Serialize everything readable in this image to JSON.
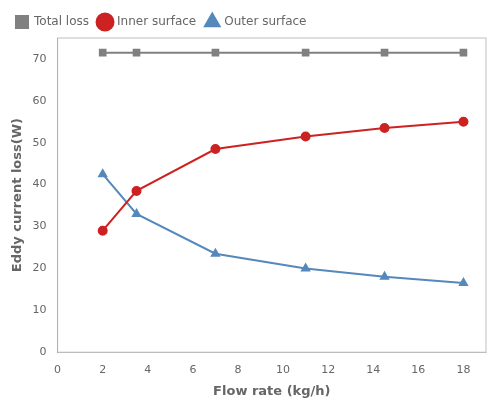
{
  "chart_data": {
    "type": "line",
    "x": [
      2,
      3.5,
      7,
      11,
      14.5,
      18
    ],
    "series": [
      {
        "name": "Total loss",
        "color": "#808080",
        "marker": "square",
        "values": [
          71.5,
          71.5,
          71.5,
          71.5,
          71.5,
          71.5
        ]
      },
      {
        "name": "Inner surface",
        "color": "#cc2222",
        "marker": "circle",
        "values": [
          29,
          38.5,
          48.5,
          51.5,
          53.5,
          55
        ]
      },
      {
        "name": "Outer surface",
        "color": "#5588bb",
        "marker": "triangle",
        "values": [
          42.5,
          33,
          23.5,
          20,
          18,
          16.5
        ]
      }
    ],
    "xlabel": "Flow rate (kg/h)",
    "ylabel": "Eddy current loss(W)",
    "xlim": [
      0,
      19
    ],
    "ylim": [
      0,
      75
    ],
    "xticks": [
      0,
      2,
      4,
      6,
      8,
      10,
      12,
      14,
      16,
      18
    ],
    "yticks": [
      0,
      10,
      20,
      30,
      40,
      50,
      60,
      70
    ],
    "legend": "upper left",
    "grid": false
  }
}
